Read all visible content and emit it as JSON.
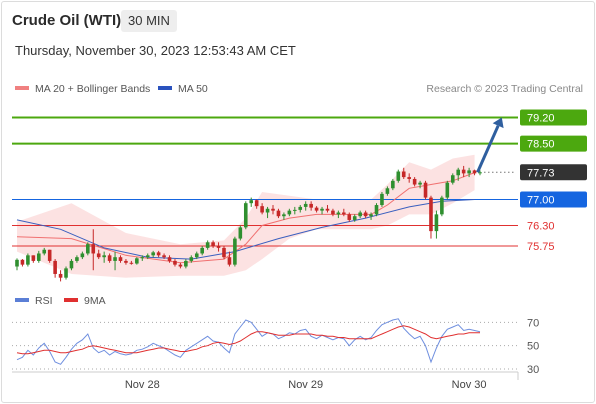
{
  "header": {
    "title": "Crude Oil (WTI)",
    "timeframe": "30 MIN",
    "datetime": "Thursday, November 30, 2023 12:53:43 AM CET"
  },
  "chart_data": [
    {
      "type": "candlestick",
      "legend": [
        {
          "name": "MA 20 + Bollinger Bands",
          "color": "#f08080"
        },
        {
          "name": "MA 50",
          "color": "#2a52be"
        }
      ],
      "credit": "Research © 2023 Trading Central",
      "ylim": [
        74.65,
        79.75
      ],
      "x": {
        "tick_labels": [
          "Nov 28",
          "Nov 29",
          "Nov 30"
        ],
        "tick_index": [
          23,
          53,
          83
        ]
      },
      "candles": [
        [
          75.2,
          75.42,
          75.1,
          75.38
        ],
        [
          75.38,
          75.4,
          75.2,
          75.25
        ],
        [
          75.25,
          75.55,
          75.2,
          75.5
        ],
        [
          75.5,
          75.5,
          75.3,
          75.35
        ],
        [
          75.35,
          75.62,
          75.3,
          75.55
        ],
        [
          75.55,
          75.7,
          75.5,
          75.65
        ],
        [
          75.65,
          75.65,
          75.3,
          75.35
        ],
        [
          75.35,
          75.4,
          74.9,
          75.0
        ],
        [
          75.0,
          75.1,
          74.8,
          74.9
        ],
        [
          74.9,
          75.2,
          74.85,
          75.15
        ],
        [
          75.15,
          75.4,
          75.1,
          75.35
        ],
        [
          75.35,
          75.5,
          75.3,
          75.45
        ],
        [
          75.45,
          75.6,
          75.4,
          75.55
        ],
        [
          75.55,
          75.85,
          75.5,
          75.8
        ],
        [
          75.8,
          76.2,
          75.1,
          75.55
        ],
        [
          75.55,
          75.65,
          75.4,
          75.45
        ],
        [
          75.45,
          75.6,
          75.3,
          75.5
        ],
        [
          75.5,
          75.55,
          75.3,
          75.35
        ],
        [
          75.35,
          75.6,
          75.1,
          75.45
        ],
        [
          75.45,
          75.5,
          75.3,
          75.35
        ],
        [
          75.35,
          75.4,
          75.25,
          75.3
        ],
        [
          75.3,
          75.35,
          75.25,
          75.28
        ],
        [
          75.28,
          75.45,
          75.25,
          75.42
        ],
        [
          75.42,
          75.5,
          75.35,
          75.45
        ],
        [
          75.45,
          75.55,
          75.4,
          75.5
        ],
        [
          75.5,
          75.62,
          75.45,
          75.58
        ],
        [
          75.58,
          75.62,
          75.45,
          75.5
        ],
        [
          75.5,
          75.55,
          75.4,
          75.45
        ],
        [
          75.45,
          75.5,
          75.3,
          75.35
        ],
        [
          75.35,
          75.4,
          75.2,
          75.25
        ],
        [
          75.25,
          75.3,
          75.15,
          75.2
        ],
        [
          75.2,
          75.4,
          75.15,
          75.35
        ],
        [
          75.35,
          75.5,
          75.3,
          75.45
        ],
        [
          75.45,
          75.6,
          75.4,
          75.55
        ],
        [
          75.55,
          75.75,
          75.5,
          75.7
        ],
        [
          75.7,
          75.9,
          75.65,
          75.85
        ],
        [
          75.85,
          75.9,
          75.7,
          75.75
        ],
        [
          75.75,
          75.85,
          75.6,
          75.7
        ],
        [
          75.7,
          75.75,
          75.4,
          75.45
        ],
        [
          75.45,
          75.6,
          75.2,
          75.25
        ],
        [
          75.25,
          76.0,
          75.2,
          75.95
        ],
        [
          75.95,
          76.3,
          75.9,
          76.25
        ],
        [
          76.25,
          76.95,
          76.2,
          76.9
        ],
        [
          76.9,
          77.05,
          76.8,
          76.98
        ],
        [
          76.98,
          77.0,
          76.75,
          76.82
        ],
        [
          76.82,
          76.9,
          76.6,
          76.65
        ],
        [
          76.65,
          76.8,
          76.5,
          76.75
        ],
        [
          76.75,
          76.85,
          76.6,
          76.7
        ],
        [
          76.7,
          76.75,
          76.5,
          76.55
        ],
        [
          76.55,
          76.65,
          76.45,
          76.6
        ],
        [
          76.6,
          76.75,
          76.55,
          76.7
        ],
        [
          76.7,
          76.8,
          76.6,
          76.72
        ],
        [
          76.72,
          76.85,
          76.65,
          76.8
        ],
        [
          76.8,
          76.95,
          76.7,
          76.88
        ],
        [
          76.88,
          76.95,
          76.7,
          76.78
        ],
        [
          76.78,
          76.82,
          76.65,
          76.7
        ],
        [
          76.7,
          76.8,
          76.6,
          76.75
        ],
        [
          76.75,
          76.85,
          76.65,
          76.7
        ],
        [
          76.7,
          76.75,
          76.55,
          76.6
        ],
        [
          76.6,
          76.7,
          76.5,
          76.65
        ],
        [
          76.65,
          76.75,
          76.55,
          76.6
        ],
        [
          76.6,
          76.65,
          76.4,
          76.45
        ],
        [
          76.45,
          76.6,
          76.4,
          76.55
        ],
        [
          76.55,
          76.7,
          76.5,
          76.65
        ],
        [
          76.65,
          76.7,
          76.5,
          76.55
        ],
        [
          76.55,
          76.65,
          76.45,
          76.6
        ],
        [
          76.6,
          76.9,
          76.55,
          76.85
        ],
        [
          76.85,
          77.2,
          76.8,
          77.15
        ],
        [
          77.15,
          77.35,
          77.1,
          77.3
        ],
        [
          77.3,
          77.55,
          77.25,
          77.5
        ],
        [
          77.5,
          77.8,
          77.45,
          77.75
        ],
        [
          77.75,
          77.85,
          77.55,
          77.6
        ],
        [
          77.6,
          77.7,
          77.45,
          77.55
        ],
        [
          77.55,
          77.6,
          77.35,
          77.4
        ],
        [
          77.4,
          77.5,
          77.3,
          77.45
        ],
        [
          77.45,
          77.5,
          77.0,
          77.05
        ],
        [
          77.05,
          77.1,
          75.95,
          76.15
        ],
        [
          76.15,
          76.7,
          75.95,
          76.6
        ],
        [
          76.6,
          77.1,
          76.55,
          77.05
        ],
        [
          77.05,
          77.5,
          77.0,
          77.45
        ],
        [
          77.45,
          77.7,
          77.4,
          77.65
        ],
        [
          77.65,
          77.85,
          77.5,
          77.8
        ],
        [
          77.8,
          77.9,
          77.6,
          77.7
        ],
        [
          77.7,
          77.85,
          77.6,
          77.78
        ],
        [
          77.78,
          77.8,
          77.65,
          77.7
        ],
        [
          77.7,
          77.78,
          77.65,
          77.73
        ]
      ],
      "ma20": [
        [
          0,
          76.0
        ],
        [
          10,
          75.95
        ],
        [
          20,
          75.5
        ],
        [
          30,
          75.3
        ],
        [
          38,
          75.4
        ],
        [
          42,
          75.8
        ],
        [
          45,
          76.3
        ],
        [
          50,
          76.5
        ],
        [
          55,
          76.6
        ],
        [
          60,
          76.6
        ],
        [
          65,
          76.6
        ],
        [
          68,
          76.85
        ],
        [
          72,
          77.3
        ],
        [
          76,
          77.4
        ],
        [
          80,
          77.5
        ],
        [
          84,
          77.72
        ]
      ],
      "bb_upper": [
        [
          0,
          76.4
        ],
        [
          10,
          76.9
        ],
        [
          20,
          76.1
        ],
        [
          30,
          75.8
        ],
        [
          38,
          75.9
        ],
        [
          42,
          76.5
        ],
        [
          45,
          77.2
        ],
        [
          50,
          77.1
        ],
        [
          55,
          77.0
        ],
        [
          60,
          77.0
        ],
        [
          65,
          77.0
        ],
        [
          68,
          77.4
        ],
        [
          72,
          78.0
        ],
        [
          76,
          77.8
        ],
        [
          80,
          78.1
        ],
        [
          84,
          78.2
        ]
      ],
      "bb_lower": [
        [
          0,
          75.6
        ],
        [
          10,
          75.0
        ],
        [
          20,
          74.9
        ],
        [
          30,
          74.95
        ],
        [
          38,
          74.95
        ],
        [
          42,
          75.1
        ],
        [
          45,
          75.4
        ],
        [
          50,
          75.95
        ],
        [
          55,
          76.2
        ],
        [
          60,
          76.2
        ],
        [
          65,
          76.2
        ],
        [
          68,
          76.3
        ],
        [
          72,
          76.6
        ],
        [
          76,
          76.6
        ],
        [
          80,
          76.9
        ],
        [
          84,
          77.25
        ]
      ],
      "ma50": [
        [
          0,
          76.45
        ],
        [
          8,
          76.2
        ],
        [
          16,
          75.7
        ],
        [
          24,
          75.45
        ],
        [
          32,
          75.4
        ],
        [
          40,
          75.6
        ],
        [
          48,
          75.95
        ],
        [
          56,
          76.25
        ],
        [
          64,
          76.5
        ],
        [
          72,
          76.8
        ],
        [
          78,
          76.95
        ],
        [
          84,
          77.0
        ]
      ],
      "levels": [
        {
          "value": 79.2,
          "label": "79.20",
          "color": "#4ca80f"
        },
        {
          "value": 78.5,
          "label": "78.50",
          "color": "#4ca80f"
        },
        {
          "value": 77.73,
          "label": "77.73",
          "color": "#333333",
          "dashed": true
        },
        {
          "value": 77.0,
          "label": "77.00",
          "color": "#1565e0"
        },
        {
          "value": 76.3,
          "label": "76.30",
          "color": "#e03030"
        },
        {
          "value": 75.75,
          "label": "75.75",
          "color": "#e03030"
        }
      ],
      "arrow": {
        "from": [
          84,
          77.73
        ],
        "to": [
          89,
          79.2
        ]
      }
    },
    {
      "type": "line",
      "legend": [
        {
          "name": "RSI",
          "color": "#5b7fd6"
        },
        {
          "name": "9MA",
          "color": "#e03030"
        }
      ],
      "ylim": [
        24,
        78
      ],
      "y_ticks": [
        70,
        50,
        30
      ],
      "rsi": [
        38,
        40,
        46,
        42,
        48,
        52,
        45,
        36,
        34,
        40,
        47,
        52,
        55,
        60,
        48,
        44,
        46,
        42,
        45,
        43,
        42,
        43,
        46,
        47,
        49,
        52,
        50,
        48,
        45,
        42,
        40,
        46,
        49,
        52,
        55,
        58,
        54,
        53,
        48,
        44,
        60,
        66,
        72,
        70,
        64,
        58,
        61,
        60,
        56,
        58,
        61,
        60,
        63,
        64,
        58,
        56,
        59,
        57,
        55,
        57,
        56,
        50,
        55,
        58,
        55,
        57,
        63,
        68,
        70,
        72,
        73,
        65,
        60,
        56,
        58,
        50,
        36,
        48,
        58,
        64,
        66,
        68,
        63,
        64,
        63,
        62
      ],
      "ma9": [
        44,
        43,
        43,
        44,
        45,
        46,
        46,
        45,
        44,
        44,
        45,
        46,
        47,
        49,
        50,
        49,
        48,
        47,
        46,
        45,
        44,
        44,
        44,
        45,
        46,
        47,
        48,
        48,
        47,
        46,
        45,
        45,
        46,
        47,
        49,
        50,
        52,
        53,
        52,
        51,
        52,
        54,
        57,
        60,
        62,
        62,
        61,
        60,
        59,
        59,
        59,
        60,
        60,
        60,
        60,
        59,
        59,
        58,
        58,
        57,
        57,
        56,
        56,
        56,
        56,
        56,
        58,
        60,
        62,
        64,
        66,
        67,
        66,
        64,
        62,
        60,
        57,
        56,
        57,
        58,
        59,
        60,
        60,
        61,
        61,
        61
      ]
    }
  ]
}
